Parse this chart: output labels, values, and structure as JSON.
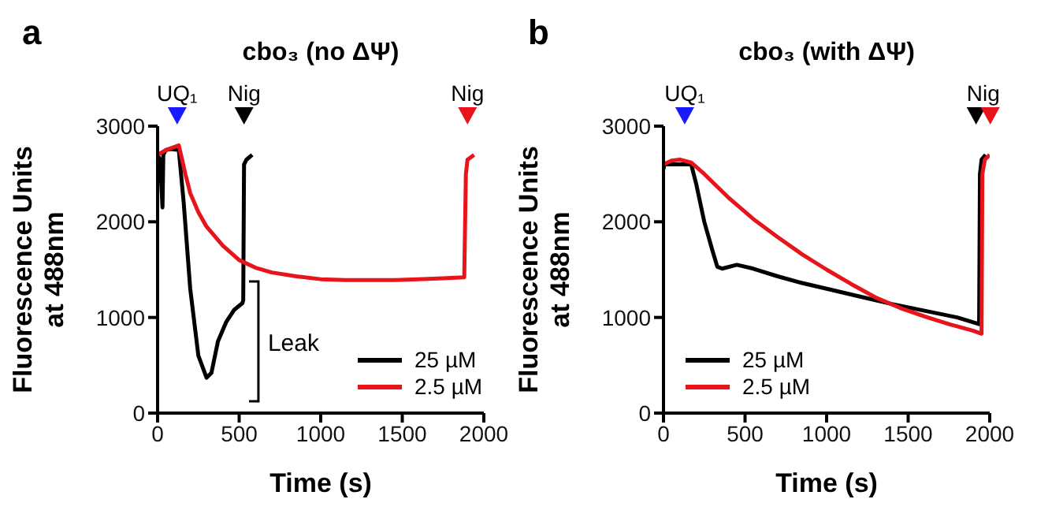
{
  "chart_data": [
    {
      "type": "line",
      "title": "cbo₃ (no ΔΨ)",
      "xlabel": "Time (s)",
      "ylabel": "Fluorescence Units at 488nm",
      "xlim": [
        0,
        2000
      ],
      "xticks": [
        0,
        500,
        1000,
        1500,
        2000
      ],
      "ylim": [
        0,
        3000
      ],
      "yticks": [
        0,
        1000,
        2000,
        3000
      ],
      "legend": "bottom right",
      "marker": "none",
      "line_style": "solid",
      "grid": false,
      "annotations": [
        "a",
        "UQ₁",
        "Nig",
        "Nig",
        "Leak"
      ],
      "series": [
        {
          "name": "25 µM",
          "color": "#000000",
          "x": [
            0,
            15,
            30,
            35,
            50,
            80,
            130,
            160,
            200,
            250,
            300,
            330,
            370,
            420,
            470,
            520,
            525,
            530,
            545,
            580
          ],
          "values": [
            2700,
            2650,
            2150,
            2700,
            2750,
            2760,
            2750,
            2200,
            1300,
            600,
            370,
            420,
            750,
            950,
            1080,
            1150,
            1180,
            2600,
            2650,
            2700
          ]
        },
        {
          "name": "2.5 µM",
          "color": "#e8141c",
          "x": [
            0,
            50,
            130,
            170,
            200,
            250,
            300,
            400,
            500,
            600,
            700,
            850,
            1000,
            1150,
            1300,
            1450,
            1600,
            1750,
            1880,
            1890,
            1900,
            1940
          ],
          "values": [
            2700,
            2750,
            2800,
            2500,
            2300,
            2100,
            1950,
            1750,
            1600,
            1520,
            1470,
            1430,
            1400,
            1390,
            1390,
            1390,
            1400,
            1410,
            1420,
            2500,
            2650,
            2700
          ]
        }
      ]
    },
    {
      "type": "line",
      "title": "cbo₃ (with ΔΨ)",
      "xlabel": "Time (s)",
      "ylabel": "Fluorescence Units at 488nm",
      "xlim": [
        0,
        2000
      ],
      "xticks": [
        0,
        500,
        1000,
        1500,
        2000
      ],
      "ylim": [
        0,
        3000
      ],
      "yticks": [
        0,
        1000,
        2000,
        3000
      ],
      "legend": "bottom left",
      "marker": "none",
      "line_style": "solid",
      "grid": false,
      "annotations": [
        "b",
        "UQ₁",
        "Nig"
      ],
      "series": [
        {
          "name": "25 µM",
          "color": "#000000",
          "x": [
            0,
            5,
            170,
            200,
            250,
            300,
            330,
            360,
            450,
            550,
            700,
            850,
            1000,
            1200,
            1400,
            1600,
            1800,
            1935,
            1940,
            1950,
            1975
          ],
          "values": [
            2550,
            2600,
            2600,
            2400,
            2000,
            1700,
            1530,
            1510,
            1550,
            1510,
            1430,
            1360,
            1300,
            1220,
            1140,
            1070,
            1000,
            930,
            2500,
            2650,
            2700
          ]
        },
        {
          "name": "2.5 µM",
          "color": "#e8141c",
          "x": [
            0,
            50,
            100,
            170,
            250,
            400,
            550,
            700,
            850,
            1000,
            1150,
            1300,
            1450,
            1600,
            1750,
            1900,
            1950,
            1955,
            1970,
            2000
          ],
          "values": [
            2600,
            2640,
            2650,
            2620,
            2500,
            2250,
            2030,
            1840,
            1660,
            1500,
            1350,
            1210,
            1100,
            1010,
            930,
            860,
            830,
            2500,
            2650,
            2700
          ]
        }
      ]
    }
  ]
}
